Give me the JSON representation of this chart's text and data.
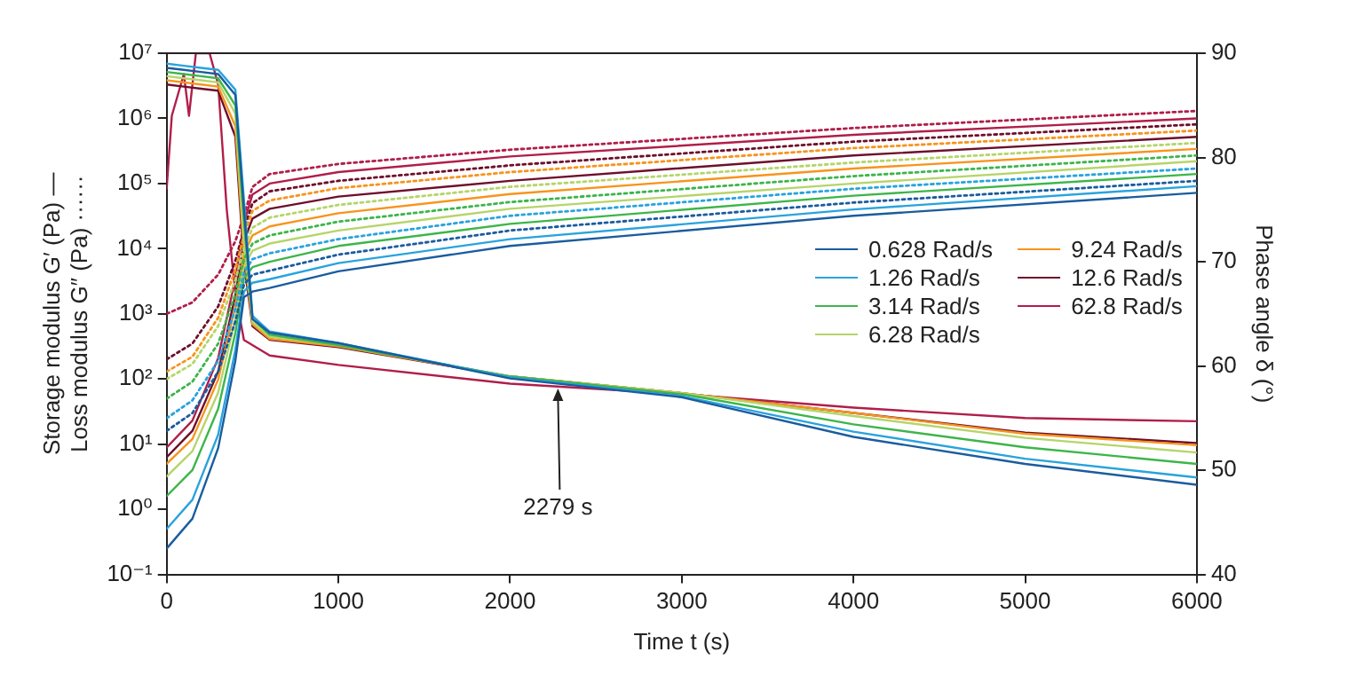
{
  "chart_data": {
    "type": "line",
    "xlabel": "Time t (s)",
    "ylabel": "Storage modulus G′ (Pa) —\nLoss modulus G″ (Pa) ······",
    "y2label": "Phase angle δ (°)",
    "x": [
      0,
      150,
      300,
      400,
      450,
      500,
      600,
      1000,
      2000,
      4000,
      6000
    ],
    "xlim": [
      0,
      6000
    ],
    "xticks": [
      0,
      1000,
      2000,
      3000,
      4000,
      5000,
      6000
    ],
    "log": "y",
    "ylim": [
      0.1,
      10000000
    ],
    "yticks": [
      {
        "value": 0.1,
        "label": "10⁻¹"
      },
      {
        "value": 1,
        "label": "10⁰"
      },
      {
        "value": 10,
        "label": "10¹"
      },
      {
        "value": 100,
        "label": "10²"
      },
      {
        "value": 1000,
        "label": "10³"
      },
      {
        "value": 10000,
        "label": "10⁴"
      },
      {
        "value": 100000,
        "label": "10⁵"
      },
      {
        "value": 1000000,
        "label": "10⁶"
      },
      {
        "value": 10000000,
        "label": "10⁷"
      }
    ],
    "y2lim": [
      40,
      90
    ],
    "y2ticks": [
      40,
      50,
      60,
      70,
      80,
      90
    ],
    "grid": false,
    "legend": "right",
    "marker": "none",
    "annotations": [
      {
        "text": "2279 s",
        "x": 2279,
        "y": 58
      }
    ],
    "series": [
      {
        "name": "0.628 Rad/s",
        "color": "#1a5c9e",
        "line_style": "solid",
        "values": [
          0.25,
          0.72,
          8.7,
          190,
          1800,
          2200,
          2500,
          4500,
          11000,
          32000,
          72000
        ]
      },
      {
        "color": "#1a5c9e",
        "line_style": "dotted",
        "values": [
          16,
          30,
          130,
          760,
          2800,
          4000,
          4600,
          8100,
          19000,
          51000,
          110000
        ]
      },
      {
        "color": "#1a5c9e",
        "line_style": "solid",
        "axis": "y2",
        "x": [
          0,
          100,
          200,
          300,
          400,
          450,
          500,
          600,
          1000,
          2000,
          3000,
          4000,
          5000,
          6000
        ],
        "values": [
          88.6,
          88.4,
          88.2,
          88.0,
          86,
          75,
          64.5,
          63.2,
          62.2,
          58.8,
          57.0,
          53.2,
          50.6,
          48.6
        ]
      },
      {
        "name": "1.26 Rad/s",
        "color": "#29a3dd",
        "line_style": "solid",
        "values": [
          0.5,
          1.4,
          14,
          280,
          2200,
          3000,
          3400,
          6000,
          14000,
          40000,
          91000
        ]
      },
      {
        "color": "#29a3dd",
        "line_style": "dotted",
        "values": [
          25,
          47,
          190,
          1200,
          4300,
          6900,
          8500,
          14000,
          32000,
          83000,
          170000
        ]
      },
      {
        "color": "#29a3dd",
        "line_style": "solid",
        "axis": "y2",
        "x": [
          0,
          100,
          200,
          300,
          400,
          450,
          500,
          600,
          1000,
          2000,
          3000,
          4000,
          5000,
          6000
        ],
        "values": [
          89.0,
          88.8,
          88.6,
          88.4,
          86.5,
          76,
          64.8,
          63.3,
          62.2,
          58.9,
          57.1,
          53.7,
          51.1,
          49.3
        ]
      },
      {
        "name": "3.14 Rad/s",
        "color": "#3db54a",
        "line_style": "solid",
        "values": [
          1.6,
          4.0,
          35,
          510,
          3500,
          5200,
          6300,
          11000,
          24000,
          65000,
          140000
        ]
      },
      {
        "color": "#3db54a",
        "line_style": "dotted",
        "values": [
          50,
          91,
          350,
          2000,
          6800,
          12000,
          16000,
          26000,
          52000,
          130000,
          270000
        ]
      },
      {
        "color": "#3db54a",
        "line_style": "solid",
        "axis": "y2",
        "x": [
          0,
          100,
          200,
          300,
          400,
          450,
          500,
          600,
          1000,
          2000,
          3000,
          4000,
          5000,
          6000
        ],
        "values": [
          88.2,
          88.0,
          87.8,
          87.6,
          85,
          74,
          64.5,
          63.0,
          62.0,
          59.0,
          57.3,
          54.4,
          52.2,
          50.6
        ]
      },
      {
        "name": "6.28 Rad/s",
        "color": "#b5d56a",
        "line_style": "solid",
        "values": [
          3.2,
          7.8,
          62,
          830,
          5400,
          9300,
          12000,
          19000,
          41000,
          100000,
          220000
        ]
      },
      {
        "color": "#b5d56a",
        "line_style": "dotted",
        "values": [
          100,
          170,
          650,
          3300,
          10000,
          21000,
          30000,
          47000,
          89000,
          210000,
          420000
        ]
      },
      {
        "color": "#b5d56a",
        "line_style": "solid",
        "axis": "y2",
        "x": [
          0,
          100,
          200,
          300,
          400,
          450,
          500,
          600,
          1000,
          2000,
          3000,
          4000,
          5000,
          6000
        ],
        "values": [
          87.8,
          87.6,
          87.4,
          87.2,
          84.2,
          72,
          64.2,
          62.8,
          62.0,
          59.0,
          57.4,
          55.2,
          53.1,
          51.7
        ]
      },
      {
        "name": "9.24 Rad/s",
        "color": "#f7941d",
        "line_style": "solid",
        "values": [
          5.0,
          12,
          98,
          1300,
          8300,
          16000,
          22000,
          35000,
          69000,
          170000,
          340000
        ]
      },
      {
        "color": "#f7941d",
        "line_style": "dotted",
        "values": [
          130,
          220,
          870,
          4800,
          16000,
          38000,
          55000,
          85000,
          150000,
          350000,
          650000
        ]
      },
      {
        "color": "#f7941d",
        "line_style": "solid",
        "axis": "y2",
        "x": [
          0,
          100,
          200,
          300,
          400,
          450,
          500,
          600,
          1000,
          2000,
          3000,
          4000,
          5000,
          6000
        ],
        "values": [
          87.4,
          87.2,
          87.0,
          86.8,
          83,
          71,
          64.0,
          62.6,
          61.9,
          59.0,
          57.4,
          55.5,
          53.5,
          52.4
        ]
      },
      {
        "name": "12.6 Rad/s",
        "color": "#6d0f2b",
        "line_style": "solid",
        "values": [
          6.3,
          16,
          130,
          1900,
          13000,
          29000,
          41000,
          63000,
          110000,
          270000,
          520000
        ]
      },
      {
        "color": "#6d0f2b",
        "line_style": "dotted",
        "values": [
          200,
          350,
          1300,
          6500,
          20000,
          50000,
          76000,
          110000,
          190000,
          440000,
          810000
        ]
      },
      {
        "color": "#6d0f2b",
        "line_style": "solid",
        "axis": "y2",
        "x": [
          0,
          100,
          200,
          300,
          400,
          450,
          500,
          600,
          1000,
          2000,
          3000,
          4000,
          5000,
          6000
        ],
        "values": [
          87.0,
          86.8,
          86.6,
          86.4,
          82,
          70,
          63.8,
          62.5,
          61.8,
          59.0,
          57.4,
          55.5,
          53.6,
          52.6
        ]
      },
      {
        "name": "62.8 Rad/s",
        "color": "#b01e4a",
        "line_style": "solid",
        "values": [
          8.9,
          23,
          210,
          3500,
          25000,
          68000,
          100000,
          150000,
          260000,
          560000,
          1000000
        ]
      },
      {
        "color": "#b01e4a",
        "line_style": "dotted",
        "values": [
          1000,
          1500,
          4000,
          13000,
          32000,
          89000,
          140000,
          200000,
          330000,
          710000,
          1300000
        ]
      },
      {
        "color": "#b01e4a",
        "line_style": "solid",
        "axis": "y2",
        "x": [
          0,
          30,
          100,
          130,
          170,
          250,
          300,
          350,
          400,
          450,
          600,
          1000,
          2000,
          3000,
          4000,
          5000,
          6000
        ],
        "values": [
          77,
          84,
          88,
          84,
          90,
          90,
          87,
          75,
          67,
          62.5,
          61,
          60.1,
          58.3,
          57.3,
          56.0,
          55.0,
          54.7
        ]
      }
    ]
  }
}
